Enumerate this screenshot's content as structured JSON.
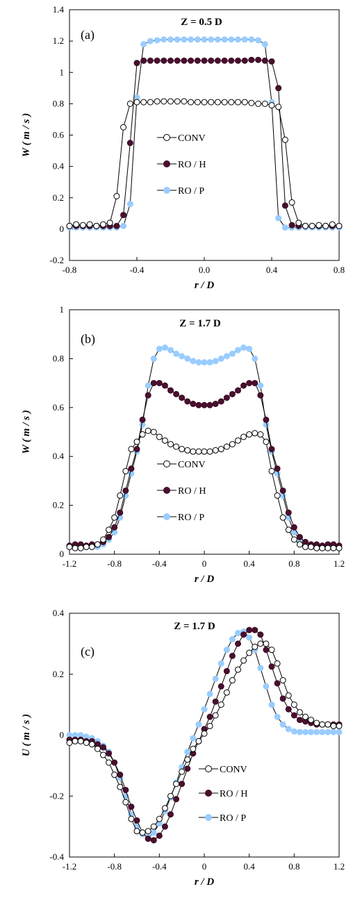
{
  "series_style": {
    "CONV": {
      "fill": "#ffffff",
      "stroke": "#000000"
    },
    "RO / H": {
      "fill": "#4a0f2e",
      "stroke": "#3b0a24"
    },
    "RO / P": {
      "fill": "#99ccff",
      "stroke": "#99ccff"
    }
  },
  "chart_data": [
    {
      "type": "line",
      "panel_label": "(a)",
      "title": "Z = 0.5 D",
      "xlabel": "r / D",
      "ylabel": "W ( m / s )",
      "xlim": [
        -0.8,
        0.8
      ],
      "ylim": [
        -0.2,
        1.4
      ],
      "xticks": [
        -0.8,
        -0.4,
        0.0,
        0.4,
        0.8
      ],
      "xtick_labels": [
        "-0.8",
        "-0.4",
        "0.0",
        "0.4",
        "0.8"
      ],
      "yticks": [
        -0.2,
        0,
        0.2,
        0.4,
        0.6,
        0.8,
        1,
        1.2,
        1.4
      ],
      "ytick_labels": [
        "-0.2",
        "0",
        "0.2",
        "0.4",
        "0.6",
        "0.8",
        "1",
        "1.2",
        "1.4"
      ],
      "legend": [
        "CONV",
        "RO / H",
        "RO / P"
      ],
      "legend_position": "center",
      "series": [
        {
          "name": "CONV",
          "x": [
            -0.8,
            -0.76,
            -0.72,
            -0.68,
            -0.64,
            -0.6,
            -0.56,
            -0.52,
            -0.48,
            -0.44,
            -0.4,
            -0.36,
            -0.32,
            -0.28,
            -0.24,
            -0.2,
            -0.16,
            -0.12,
            -0.08,
            -0.04,
            0.0,
            0.04,
            0.08,
            0.12,
            0.16,
            0.2,
            0.24,
            0.28,
            0.32,
            0.36,
            0.4,
            0.44,
            0.48,
            0.52,
            0.56,
            0.6,
            0.64,
            0.68,
            0.72,
            0.76,
            0.8
          ],
          "y": [
            0.02,
            0.03,
            0.025,
            0.03,
            0.02,
            0.03,
            0.04,
            0.21,
            0.65,
            0.8,
            0.81,
            0.81,
            0.81,
            0.815,
            0.815,
            0.815,
            0.815,
            0.815,
            0.81,
            0.81,
            0.81,
            0.81,
            0.81,
            0.81,
            0.81,
            0.81,
            0.81,
            0.805,
            0.8,
            0.8,
            0.79,
            0.78,
            0.57,
            0.17,
            0.04,
            0.02,
            0.02,
            0.025,
            0.02,
            0.03,
            0.02
          ]
        },
        {
          "name": "RO / H",
          "x": [
            -0.8,
            -0.76,
            -0.72,
            -0.68,
            -0.64,
            -0.6,
            -0.56,
            -0.52,
            -0.48,
            -0.44,
            -0.4,
            -0.36,
            -0.32,
            -0.28,
            -0.24,
            -0.2,
            -0.16,
            -0.12,
            -0.08,
            -0.04,
            0.0,
            0.04,
            0.08,
            0.12,
            0.16,
            0.2,
            0.24,
            0.28,
            0.32,
            0.36,
            0.4,
            0.44,
            0.48,
            0.52,
            0.56,
            0.6,
            0.64,
            0.68,
            0.72,
            0.76,
            0.8
          ],
          "y": [
            0.02,
            0.02,
            0.02,
            0.02,
            0.02,
            0.02,
            0.02,
            0.02,
            0.09,
            0.55,
            1.06,
            1.075,
            1.075,
            1.075,
            1.075,
            1.075,
            1.075,
            1.075,
            1.075,
            1.075,
            1.075,
            1.075,
            1.075,
            1.075,
            1.075,
            1.075,
            1.075,
            1.08,
            1.08,
            1.075,
            1.07,
            0.9,
            0.15,
            0.025,
            0.02,
            0.02,
            0.02,
            0.02,
            0.02,
            0.02,
            0.02
          ]
        },
        {
          "name": "RO / P",
          "x": [
            -0.8,
            -0.76,
            -0.72,
            -0.68,
            -0.64,
            -0.6,
            -0.56,
            -0.52,
            -0.48,
            -0.44,
            -0.4,
            -0.36,
            -0.32,
            -0.28,
            -0.24,
            -0.2,
            -0.16,
            -0.12,
            -0.08,
            -0.04,
            0.0,
            0.04,
            0.08,
            0.12,
            0.16,
            0.2,
            0.24,
            0.28,
            0.32,
            0.36,
            0.4,
            0.44,
            0.48,
            0.52,
            0.56,
            0.6,
            0.64,
            0.68,
            0.72,
            0.76,
            0.8
          ],
          "y": [
            0.01,
            0.01,
            0.01,
            0.01,
            0.01,
            0.01,
            0.01,
            0.01,
            0.02,
            0.16,
            0.84,
            1.18,
            1.2,
            1.205,
            1.21,
            1.21,
            1.21,
            1.21,
            1.21,
            1.21,
            1.21,
            1.21,
            1.21,
            1.21,
            1.21,
            1.21,
            1.21,
            1.21,
            1.205,
            1.18,
            0.81,
            0.07,
            0.01,
            0.01,
            0.01,
            0.01,
            0.01,
            0.01,
            0.01,
            0.01,
            0.01
          ]
        }
      ]
    },
    {
      "type": "line",
      "panel_label": "(b)",
      "title": "Z = 1.7 D",
      "xlabel": "r / D",
      "ylabel": "W ( m / s )",
      "xlim": [
        -1.2,
        1.2
      ],
      "ylim": [
        0,
        1
      ],
      "xticks": [
        -1.2,
        -0.8,
        -0.4,
        0,
        0.4,
        0.8,
        1.2
      ],
      "xtick_labels": [
        "-1.2",
        "-0.8",
        "-0.4",
        "0",
        "0.4",
        "0.8",
        "1.2"
      ],
      "yticks": [
        0,
        0.2,
        0.4,
        0.6,
        0.8,
        1
      ],
      "ytick_labels": [
        "0",
        "0.2",
        "0.4",
        "0.6",
        "0.8",
        "1"
      ],
      "legend": [
        "CONV",
        "RO / H",
        "RO / P"
      ],
      "legend_position": "bottom-center",
      "series": [
        {
          "name": "CONV",
          "x": [
            -1.2,
            -1.15,
            -1.1,
            -1.05,
            -1.0,
            -0.95,
            -0.9,
            -0.85,
            -0.8,
            -0.75,
            -0.7,
            -0.65,
            -0.6,
            -0.55,
            -0.5,
            -0.45,
            -0.4,
            -0.35,
            -0.3,
            -0.25,
            -0.2,
            -0.15,
            -0.1,
            -0.05,
            0.0,
            0.05,
            0.1,
            0.15,
            0.2,
            0.25,
            0.3,
            0.35,
            0.4,
            0.45,
            0.5,
            0.55,
            0.6,
            0.65,
            0.7,
            0.75,
            0.8,
            0.85,
            0.9,
            0.95,
            1.0,
            1.05,
            1.1,
            1.15,
            1.2
          ],
          "y": [
            0.03,
            0.025,
            0.025,
            0.03,
            0.03,
            0.04,
            0.06,
            0.1,
            0.15,
            0.24,
            0.34,
            0.43,
            0.46,
            0.49,
            0.505,
            0.5,
            0.48,
            0.465,
            0.45,
            0.44,
            0.43,
            0.425,
            0.42,
            0.42,
            0.42,
            0.42,
            0.425,
            0.43,
            0.44,
            0.45,
            0.465,
            0.48,
            0.49,
            0.495,
            0.49,
            0.46,
            0.34,
            0.24,
            0.15,
            0.1,
            0.06,
            0.04,
            0.03,
            0.03,
            0.025,
            0.025,
            0.025,
            0.025,
            0.025
          ]
        },
        {
          "name": "RO / H",
          "x": [
            -1.2,
            -1.15,
            -1.1,
            -1.05,
            -1.0,
            -0.95,
            -0.9,
            -0.85,
            -0.8,
            -0.75,
            -0.7,
            -0.65,
            -0.6,
            -0.55,
            -0.5,
            -0.45,
            -0.4,
            -0.35,
            -0.3,
            -0.25,
            -0.2,
            -0.15,
            -0.1,
            -0.05,
            0.0,
            0.05,
            0.1,
            0.15,
            0.2,
            0.25,
            0.3,
            0.35,
            0.4,
            0.45,
            0.5,
            0.55,
            0.6,
            0.65,
            0.7,
            0.75,
            0.8,
            0.85,
            0.9,
            0.95,
            1.0,
            1.05,
            1.1,
            1.15,
            1.2
          ],
          "y": [
            0.035,
            0.04,
            0.04,
            0.035,
            0.04,
            0.04,
            0.05,
            0.07,
            0.11,
            0.17,
            0.26,
            0.35,
            0.43,
            0.55,
            0.65,
            0.7,
            0.7,
            0.69,
            0.67,
            0.655,
            0.64,
            0.625,
            0.615,
            0.61,
            0.61,
            0.61,
            0.615,
            0.625,
            0.64,
            0.655,
            0.67,
            0.69,
            0.7,
            0.7,
            0.65,
            0.55,
            0.43,
            0.35,
            0.26,
            0.17,
            0.11,
            0.07,
            0.05,
            0.04,
            0.04,
            0.035,
            0.04,
            0.04,
            0.035
          ]
        },
        {
          "name": "RO / P",
          "x": [
            -1.2,
            -1.15,
            -1.1,
            -1.05,
            -1.0,
            -0.95,
            -0.9,
            -0.85,
            -0.8,
            -0.75,
            -0.7,
            -0.65,
            -0.6,
            -0.55,
            -0.5,
            -0.45,
            -0.4,
            -0.35,
            -0.3,
            -0.25,
            -0.2,
            -0.15,
            -0.1,
            -0.05,
            0.0,
            0.05,
            0.1,
            0.15,
            0.2,
            0.25,
            0.3,
            0.35,
            0.4,
            0.45,
            0.5,
            0.55,
            0.6,
            0.65,
            0.7,
            0.75,
            0.8,
            0.85,
            0.9,
            0.95,
            1.0,
            1.05,
            1.1,
            1.15,
            1.2
          ],
          "y": [
            0.03,
            0.03,
            0.03,
            0.03,
            0.03,
            0.03,
            0.04,
            0.06,
            0.09,
            0.15,
            0.24,
            0.33,
            0.42,
            0.53,
            0.69,
            0.8,
            0.84,
            0.845,
            0.835,
            0.82,
            0.81,
            0.8,
            0.79,
            0.785,
            0.785,
            0.785,
            0.79,
            0.8,
            0.81,
            0.82,
            0.835,
            0.845,
            0.84,
            0.8,
            0.69,
            0.53,
            0.42,
            0.33,
            0.24,
            0.15,
            0.09,
            0.06,
            0.04,
            0.03,
            0.03,
            0.03,
            0.03,
            0.03,
            0.03
          ]
        }
      ]
    },
    {
      "type": "line",
      "panel_label": "(c)",
      "title": "Z = 1.7 D",
      "xlabel": "r / D",
      "ylabel": "U ( m / s )",
      "xlim": [
        -1.2,
        1.2
      ],
      "ylim": [
        -0.4,
        0.4
      ],
      "xticks": [
        -1.2,
        -0.8,
        -0.4,
        0,
        0.4,
        0.8,
        1.2
      ],
      "xtick_labels": [
        "-1.2",
        "-0.8",
        "-0.4",
        "0",
        "0.4",
        "0.8",
        "1.2"
      ],
      "yticks": [
        -0.4,
        -0.2,
        0,
        0.2,
        0.4
      ],
      "ytick_labels": [
        "-0.4",
        "-0.2",
        "0",
        "0.2",
        "0.4"
      ],
      "legend": [
        "CONV",
        "RO / H",
        "RO / P"
      ],
      "legend_position": "bottom-right",
      "series": [
        {
          "name": "CONV",
          "x": [
            -1.2,
            -1.15,
            -1.1,
            -1.05,
            -1.0,
            -0.95,
            -0.9,
            -0.85,
            -0.8,
            -0.75,
            -0.7,
            -0.65,
            -0.6,
            -0.55,
            -0.5,
            -0.45,
            -0.4,
            -0.35,
            -0.3,
            -0.25,
            -0.2,
            -0.15,
            -0.1,
            -0.05,
            0.0,
            0.05,
            0.1,
            0.15,
            0.2,
            0.25,
            0.3,
            0.35,
            0.4,
            0.45,
            0.5,
            0.55,
            0.6,
            0.65,
            0.7,
            0.75,
            0.8,
            0.85,
            0.9,
            0.95,
            1.0,
            1.05,
            1.1,
            1.15,
            1.2
          ],
          "y": [
            -0.025,
            -0.02,
            -0.02,
            -0.025,
            -0.03,
            -0.045,
            -0.065,
            -0.09,
            -0.13,
            -0.17,
            -0.22,
            -0.275,
            -0.315,
            -0.32,
            -0.315,
            -0.3,
            -0.275,
            -0.24,
            -0.2,
            -0.16,
            -0.12,
            -0.08,
            -0.045,
            -0.02,
            0.005,
            0.03,
            0.065,
            0.1,
            0.14,
            0.18,
            0.215,
            0.245,
            0.27,
            0.29,
            0.3,
            0.3,
            0.28,
            0.235,
            0.18,
            0.13,
            0.1,
            0.075,
            0.06,
            0.05,
            0.04,
            0.035,
            0.035,
            0.03,
            0.03
          ]
        },
        {
          "name": "RO / H",
          "x": [
            -1.2,
            -1.15,
            -1.1,
            -1.05,
            -1.0,
            -0.95,
            -0.9,
            -0.85,
            -0.8,
            -0.75,
            -0.7,
            -0.65,
            -0.6,
            -0.55,
            -0.5,
            -0.45,
            -0.4,
            -0.35,
            -0.3,
            -0.25,
            -0.2,
            -0.15,
            -0.1,
            -0.05,
            0.0,
            0.05,
            0.1,
            0.15,
            0.2,
            0.25,
            0.3,
            0.35,
            0.4,
            0.45,
            0.5,
            0.55,
            0.6,
            0.65,
            0.7,
            0.75,
            0.8,
            0.85,
            0.9,
            0.95,
            1.0,
            1.05,
            1.1,
            1.15,
            1.2
          ],
          "y": [
            -0.015,
            -0.015,
            -0.015,
            -0.02,
            -0.02,
            -0.03,
            -0.04,
            -0.06,
            -0.09,
            -0.13,
            -0.18,
            -0.235,
            -0.28,
            -0.32,
            -0.34,
            -0.345,
            -0.33,
            -0.3,
            -0.26,
            -0.21,
            -0.16,
            -0.11,
            -0.06,
            -0.02,
            0.02,
            0.06,
            0.11,
            0.16,
            0.21,
            0.26,
            0.3,
            0.33,
            0.345,
            0.345,
            0.33,
            0.28,
            0.225,
            0.17,
            0.12,
            0.085,
            0.065,
            0.05,
            0.045,
            0.04,
            0.035,
            0.035,
            0.035,
            0.035,
            0.035
          ]
        },
        {
          "name": "RO / P",
          "x": [
            -1.2,
            -1.15,
            -1.1,
            -1.05,
            -1.0,
            -0.95,
            -0.9,
            -0.85,
            -0.8,
            -0.75,
            -0.7,
            -0.65,
            -0.6,
            -0.55,
            -0.5,
            -0.45,
            -0.4,
            -0.35,
            -0.3,
            -0.25,
            -0.2,
            -0.15,
            -0.1,
            -0.05,
            0.0,
            0.05,
            0.1,
            0.15,
            0.2,
            0.25,
            0.3,
            0.35,
            0.4,
            0.45,
            0.5,
            0.55,
            0.6,
            0.65,
            0.7,
            0.75,
            0.8,
            0.85,
            0.9,
            0.95,
            1.0,
            1.05,
            1.1,
            1.15,
            1.2
          ],
          "y": [
            0.0,
            0.0,
            0.0,
            -0.005,
            -0.01,
            -0.02,
            -0.035,
            -0.055,
            -0.09,
            -0.14,
            -0.2,
            -0.26,
            -0.3,
            -0.325,
            -0.335,
            -0.32,
            -0.29,
            -0.25,
            -0.205,
            -0.155,
            -0.105,
            -0.055,
            -0.01,
            0.035,
            0.085,
            0.135,
            0.185,
            0.235,
            0.28,
            0.315,
            0.335,
            0.34,
            0.32,
            0.28,
            0.22,
            0.16,
            0.1,
            0.06,
            0.035,
            0.02,
            0.012,
            0.01,
            0.01,
            0.01,
            0.01,
            0.01,
            0.01,
            0.01,
            0.01
          ]
        }
      ]
    }
  ]
}
